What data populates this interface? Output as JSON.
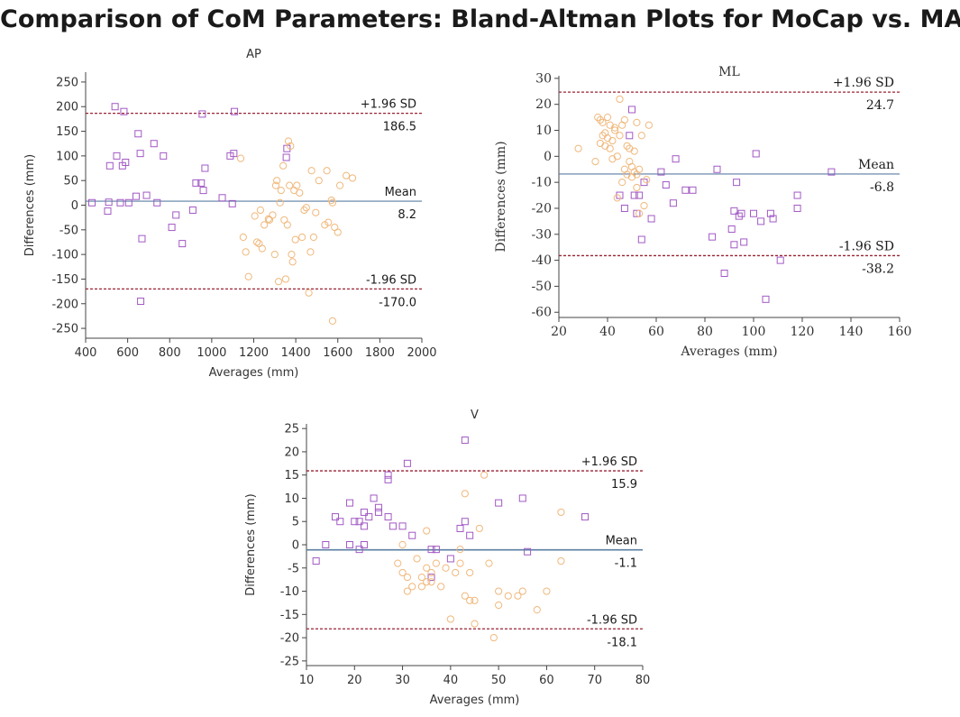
{
  "title": "Comparison of CoM Parameters: Bland-Altman Plots for MoCap vs. MAK",
  "colors": {
    "square": "#a259c4",
    "circle": "#f0b87c",
    "mean_line": "#5b7ea3",
    "sd_line": "#9b2335",
    "axis": "#444444"
  },
  "chart_data": [
    {
      "id": "ap",
      "type": "scatter",
      "title": "AP",
      "xlabel": "Averages (mm)",
      "ylabel": "Differences (mm)",
      "xlim": [
        400,
        2000
      ],
      "ylim": [
        -270,
        270
      ],
      "xticks": [
        400,
        600,
        800,
        1000,
        1200,
        1400,
        1600,
        1800,
        2000
      ],
      "yticks": [
        -250,
        -200,
        -150,
        -100,
        -50,
        0,
        50,
        100,
        150,
        200,
        250
      ],
      "lines": [
        {
          "kind": "upper",
          "value": 186.5,
          "name": "+1.96 SD",
          "label": "186.5"
        },
        {
          "kind": "mean",
          "value": 8.2,
          "name": "Mean",
          "label": "8.2"
        },
        {
          "kind": "lower",
          "value": -170.0,
          "name": "-1.96 SD",
          "label": "-170.0"
        }
      ],
      "series": [
        {
          "name": "squares",
          "marker": "square",
          "points": [
            [
              430,
              5
            ],
            [
              505,
              -12
            ],
            [
              510,
              6
            ],
            [
              515,
              80
            ],
            [
              540,
              200
            ],
            [
              548,
              100
            ],
            [
              565,
              5
            ],
            [
              575,
              80
            ],
            [
              582,
              190
            ],
            [
              590,
              87
            ],
            [
              605,
              5
            ],
            [
              640,
              18
            ],
            [
              650,
              145
            ],
            [
              660,
              105
            ],
            [
              662,
              -195
            ],
            [
              668,
              -68
            ],
            [
              690,
              20
            ],
            [
              725,
              125
            ],
            [
              740,
              5
            ],
            [
              770,
              100
            ],
            [
              810,
              -45
            ],
            [
              830,
              -20
            ],
            [
              860,
              -78
            ],
            [
              910,
              -10
            ],
            [
              925,
              45
            ],
            [
              950,
              45
            ],
            [
              955,
              185
            ],
            [
              960,
              30
            ],
            [
              968,
              75
            ],
            [
              1050,
              15
            ],
            [
              1088,
              100
            ],
            [
              1098,
              3
            ],
            [
              1105,
              105
            ],
            [
              1108,
              190
            ],
            [
              1358,
              115
            ],
            [
              1355,
              97
            ]
          ]
        },
        {
          "name": "circles",
          "marker": "circle",
          "points": [
            [
              1138,
              95
            ],
            [
              1150,
              -65
            ],
            [
              1162,
              -95
            ],
            [
              1175,
              -145
            ],
            [
              1205,
              -22
            ],
            [
              1215,
              -75
            ],
            [
              1225,
              -78
            ],
            [
              1232,
              -10
            ],
            [
              1240,
              -88
            ],
            [
              1250,
              -40
            ],
            [
              1270,
              -28
            ],
            [
              1275,
              -30
            ],
            [
              1290,
              -20
            ],
            [
              1300,
              -100
            ],
            [
              1305,
              40
            ],
            [
              1310,
              50
            ],
            [
              1318,
              -155
            ],
            [
              1325,
              5
            ],
            [
              1330,
              30
            ],
            [
              1340,
              80
            ],
            [
              1345,
              -30
            ],
            [
              1352,
              -150
            ],
            [
              1360,
              -40
            ],
            [
              1365,
              130
            ],
            [
              1370,
              40
            ],
            [
              1375,
              120
            ],
            [
              1380,
              -100
            ],
            [
              1385,
              -115
            ],
            [
              1392,
              30
            ],
            [
              1398,
              -70
            ],
            [
              1405,
              40
            ],
            [
              1418,
              25
            ],
            [
              1430,
              -65
            ],
            [
              1440,
              -10
            ],
            [
              1450,
              -5
            ],
            [
              1462,
              -178
            ],
            [
              1470,
              -95
            ],
            [
              1475,
              70
            ],
            [
              1485,
              -65
            ],
            [
              1495,
              -15
            ],
            [
              1510,
              50
            ],
            [
              1538,
              -40
            ],
            [
              1548,
              70
            ],
            [
              1555,
              -35
            ],
            [
              1570,
              10
            ],
            [
              1575,
              -235
            ],
            [
              1585,
              -45
            ],
            [
              1600,
              -55
            ],
            [
              1610,
              40
            ],
            [
              1640,
              60
            ],
            [
              1670,
              55
            ],
            [
              1575,
              5
            ]
          ]
        }
      ]
    },
    {
      "id": "ml",
      "type": "scatter",
      "title": "ML",
      "xlabel": "Averages (mm)",
      "ylabel": "Differences (mm)",
      "xlim": [
        20,
        160
      ],
      "ylim": [
        -62,
        31
      ],
      "xticks": [
        20,
        40,
        60,
        80,
        100,
        120,
        140,
        160
      ],
      "yticks": [
        -60,
        -50,
        -40,
        -30,
        -20,
        -10,
        0,
        10,
        20,
        30
      ],
      "lines": [
        {
          "kind": "upper",
          "value": 24.7,
          "name": "+1.96 SD",
          "label": "24.7"
        },
        {
          "kind": "mean",
          "value": -6.8,
          "name": "Mean",
          "label": "-6.8"
        },
        {
          "kind": "lower",
          "value": -38.2,
          "name": "-1.96 SD",
          "label": "-38.2"
        }
      ],
      "series": [
        {
          "name": "squares",
          "marker": "square",
          "points": [
            [
              45,
              -15
            ],
            [
              47,
              -20
            ],
            [
              49,
              8
            ],
            [
              50,
              18
            ],
            [
              51,
              -15
            ],
            [
              52,
              -22
            ],
            [
              53,
              -15
            ],
            [
              54,
              -32
            ],
            [
              55,
              -10
            ],
            [
              58,
              -24
            ],
            [
              62,
              -6
            ],
            [
              64,
              -11
            ],
            [
              67,
              -18
            ],
            [
              68,
              -1
            ],
            [
              72,
              -13
            ],
            [
              75,
              -13
            ],
            [
              83,
              -31
            ],
            [
              85,
              -5
            ],
            [
              88,
              -45
            ],
            [
              91,
              -28
            ],
            [
              92,
              -34
            ],
            [
              92,
              -21
            ],
            [
              93,
              -10
            ],
            [
              94,
              -23
            ],
            [
              95,
              -22
            ],
            [
              96,
              -33
            ],
            [
              100,
              -22
            ],
            [
              101,
              1
            ],
            [
              103,
              -25
            ],
            [
              105,
              -55
            ],
            [
              107,
              -22
            ],
            [
              108,
              -24
            ],
            [
              111,
              -40
            ],
            [
              118,
              -20
            ],
            [
              118,
              -15
            ],
            [
              132,
              -6
            ]
          ]
        },
        {
          "name": "circles",
          "marker": "circle",
          "points": [
            [
              28,
              3
            ],
            [
              35,
              -2
            ],
            [
              36,
              15
            ],
            [
              37,
              14
            ],
            [
              37,
              5
            ],
            [
              38,
              13
            ],
            [
              38,
              8
            ],
            [
              39,
              9
            ],
            [
              39,
              4
            ],
            [
              40,
              15
            ],
            [
              40,
              7
            ],
            [
              41,
              3
            ],
            [
              41,
              12
            ],
            [
              42,
              -1
            ],
            [
              42,
              6
            ],
            [
              43,
              11
            ],
            [
              43,
              10
            ],
            [
              44,
              0
            ],
            [
              44,
              -16
            ],
            [
              45,
              8
            ],
            [
              45,
              22
            ],
            [
              46,
              12
            ],
            [
              46,
              -10
            ],
            [
              47,
              14
            ],
            [
              47,
              -5
            ],
            [
              48,
              -7
            ],
            [
              48,
              4
            ],
            [
              49,
              3
            ],
            [
              49,
              -2
            ],
            [
              50,
              -4
            ],
            [
              50,
              -8
            ],
            [
              51,
              2
            ],
            [
              51,
              -6
            ],
            [
              52,
              -12
            ],
            [
              52,
              13
            ],
            [
              53,
              -5
            ],
            [
              53,
              -22
            ],
            [
              54,
              8
            ],
            [
              55,
              -19
            ],
            [
              56,
              -9
            ],
            [
              57,
              12
            ],
            [
              52,
              -7
            ]
          ]
        }
      ]
    },
    {
      "id": "v",
      "type": "scatter",
      "title": "V",
      "xlabel": "Averages (mm)",
      "ylabel": "Differences (mm)",
      "xlim": [
        10,
        80
      ],
      "ylim": [
        -26,
        26
      ],
      "xticks": [
        10,
        20,
        30,
        40,
        50,
        60,
        70,
        80
      ],
      "yticks": [
        -25,
        -20,
        -15,
        -10,
        -5,
        0,
        5,
        10,
        15,
        20,
        25
      ],
      "lines": [
        {
          "kind": "upper",
          "value": 15.9,
          "name": "+1.96 SD",
          "label": "15.9"
        },
        {
          "kind": "mean",
          "value": -1.1,
          "name": "Mean",
          "label": "-1.1"
        },
        {
          "kind": "lower",
          "value": -18.1,
          "name": "-1.96 SD",
          "label": "-18.1"
        }
      ],
      "series": [
        {
          "name": "squares",
          "marker": "square",
          "points": [
            [
              12,
              -3.5
            ],
            [
              14,
              0
            ],
            [
              16,
              6
            ],
            [
              17,
              5
            ],
            [
              19,
              9
            ],
            [
              19,
              0
            ],
            [
              20,
              5
            ],
            [
              21,
              5
            ],
            [
              21,
              -1
            ],
            [
              22,
              7
            ],
            [
              22,
              0
            ],
            [
              22,
              4
            ],
            [
              23,
              6
            ],
            [
              24,
              10
            ],
            [
              25,
              8
            ],
            [
              25,
              7
            ],
            [
              27,
              14
            ],
            [
              27,
              15
            ],
            [
              27,
              6
            ],
            [
              28,
              4
            ],
            [
              30,
              4
            ],
            [
              31,
              17.5
            ],
            [
              32,
              2
            ],
            [
              36,
              -7
            ],
            [
              36,
              -1
            ],
            [
              37,
              -1
            ],
            [
              40,
              -3
            ],
            [
              42,
              3.5
            ],
            [
              43,
              5
            ],
            [
              43,
              22.5
            ],
            [
              44,
              2
            ],
            [
              50,
              9
            ],
            [
              55,
              10
            ],
            [
              56,
              -1.5
            ],
            [
              68,
              6
            ]
          ]
        },
        {
          "name": "circles",
          "marker": "circle",
          "points": [
            [
              29,
              -4
            ],
            [
              30,
              0
            ],
            [
              30,
              -6
            ],
            [
              31,
              -7
            ],
            [
              31,
              -10
            ],
            [
              32,
              -9
            ],
            [
              33,
              -3
            ],
            [
              34,
              -7
            ],
            [
              34,
              -9
            ],
            [
              35,
              -5
            ],
            [
              35,
              -8
            ],
            [
              35,
              3
            ],
            [
              36,
              -6
            ],
            [
              36,
              -8
            ],
            [
              37,
              -4
            ],
            [
              38,
              -9
            ],
            [
              39,
              -5
            ],
            [
              40,
              -16
            ],
            [
              41,
              -6
            ],
            [
              42,
              -4
            ],
            [
              42,
              -1
            ],
            [
              43,
              11
            ],
            [
              43,
              -11
            ],
            [
              44,
              -12
            ],
            [
              44,
              -6
            ],
            [
              45,
              -12
            ],
            [
              45,
              -17
            ],
            [
              46,
              3.5
            ],
            [
              47,
              15
            ],
            [
              48,
              -4
            ],
            [
              49,
              -20
            ],
            [
              50,
              -10
            ],
            [
              50,
              -13
            ],
            [
              52,
              -11
            ],
            [
              54,
              -11
            ],
            [
              55,
              -10
            ],
            [
              58,
              -14
            ],
            [
              60,
              -10
            ],
            [
              63,
              7
            ],
            [
              63,
              -3.5
            ]
          ]
        }
      ]
    }
  ]
}
